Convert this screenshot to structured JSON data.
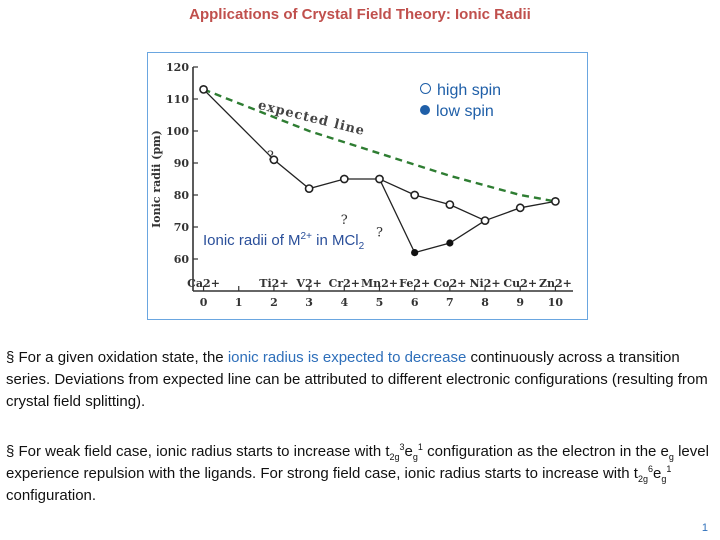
{
  "title": "Applications of Crystal Field Theory: Ionic Radii",
  "legend": {
    "high_spin": "high spin",
    "low_spin": "low spin"
  },
  "expected_line_label": "expected line",
  "caption": {
    "prefix": "Ionic radii of M",
    "charge": "2+",
    "middle": " in MCl",
    "subscript": "2"
  },
  "chart_data": {
    "type": "line",
    "ylabel": "Ionic radii (pm)",
    "ylim": [
      50,
      120
    ],
    "xlim": [
      -0.3,
      10.5
    ],
    "yticks": [
      60,
      70,
      80,
      90,
      100,
      110,
      120
    ],
    "xticks": [
      0,
      1,
      2,
      3,
      4,
      5,
      6,
      7,
      8,
      9,
      10
    ],
    "ion_labels": [
      {
        "x": 0,
        "label": "Ca2+"
      },
      {
        "x": 2,
        "label": "Ti2+"
      },
      {
        "x": 3,
        "label": "V2+"
      },
      {
        "x": 4,
        "label": "Cr2+"
      },
      {
        "x": 5,
        "label": "Mn2+"
      },
      {
        "x": 6,
        "label": "Fe2+"
      },
      {
        "x": 7,
        "label": "Co2+"
      },
      {
        "x": 8,
        "label": "Ni2+"
      },
      {
        "x": 9,
        "label": "Cu2+"
      },
      {
        "x": 10,
        "label": "Zn2+"
      }
    ],
    "series": [
      {
        "style": "high-spin",
        "x": [
          0,
          2,
          3,
          4,
          5,
          6,
          7,
          8,
          9,
          10
        ],
        "y": [
          113,
          91,
          82,
          85,
          85,
          80,
          77,
          72,
          76,
          78
        ]
      },
      {
        "style": "low-spin",
        "x": [
          6,
          7
        ],
        "y": [
          62,
          65
        ]
      },
      {
        "style": "expected",
        "x": [
          0,
          3,
          5,
          7,
          9,
          10
        ],
        "y": [
          113,
          100,
          93,
          86,
          80,
          78
        ]
      }
    ],
    "question_marks": [
      {
        "x": 1.9,
        "y": 91,
        "text": "?"
      },
      {
        "x": 4,
        "y": 71,
        "text": "?"
      },
      {
        "x": 5,
        "y": 67,
        "text": "?"
      }
    ]
  },
  "paragraphs": [
    {
      "bullet": "§",
      "before": " For a given oxidation state, the ",
      "highlight": "ionic radius is expected to decrease",
      "after": " continuously across a transition series. Deviations from expected line can be attributed to different electronic configurations (resulting from crystal field splitting)."
    },
    {
      "bullet": "§",
      "t1": " For weak field case, ionic radius starts to increase with t",
      "s1": "2g",
      "p1": "3",
      "t2": "e",
      "s2": "g",
      "p2": "1",
      "t3": " configuration as the electron in the e",
      "s3": "g",
      "t4": " level experience repulsion with the ligands. For strong field case, ionic radius starts to increase with t",
      "s4": "2g",
      "p4": "6",
      "t5": "e",
      "s5": "g",
      "p5": "1",
      "t6": " configuration."
    }
  ],
  "page_number": "1",
  "colors": {
    "title": "#c0504d",
    "highlight": "#2e6fba",
    "series": "#1f5fa8",
    "expected": "#2e7d32"
  }
}
